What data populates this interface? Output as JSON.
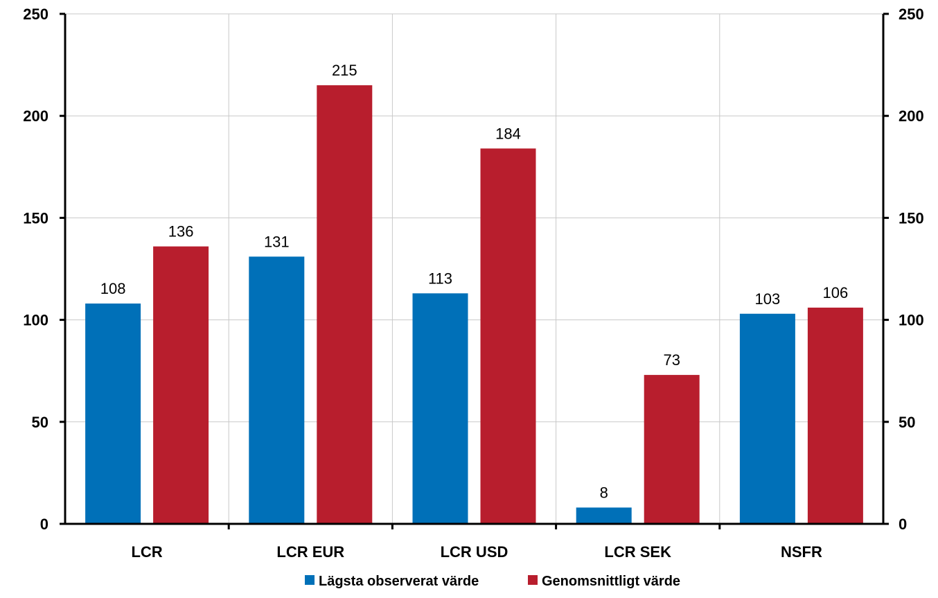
{
  "chart_data": {
    "type": "bar",
    "categories": [
      "LCR",
      "LCR EUR",
      "LCR USD",
      "LCR SEK",
      "NSFR"
    ],
    "series": [
      {
        "name": "Lägsta observerat värde",
        "values": [
          108,
          131,
          113,
          8,
          103
        ],
        "color": "#0070b8"
      },
      {
        "name": "Genomsnittligt värde",
        "values": [
          136,
          215,
          184,
          73,
          106
        ],
        "color": "#b81e2d"
      }
    ],
    "ylim": [
      0,
      250
    ],
    "yticks": [
      "0",
      "50",
      "100",
      "150",
      "200",
      "250"
    ],
    "y_axes": "left-and-right",
    "grid": true,
    "data_labels": true,
    "legend_position": "bottom"
  }
}
